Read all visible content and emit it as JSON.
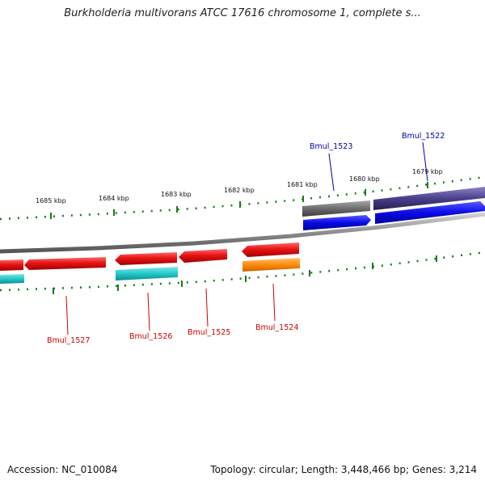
{
  "title": "Burkholderia multivorans ATCC 17616 chromosome 1, complete s...",
  "footer": {
    "accession": "Accession: NC_010084",
    "summary": "Topology: circular; Length: 3,448,466 bp; Genes: 3,214"
  },
  "colors": {
    "backbone": "#8c8c8c",
    "tick": "#1a7a1a",
    "reverse_label": "#cc0000",
    "forward_label": "#0000aa"
  },
  "ticks": [
    {
      "label": "1685 kbp"
    },
    {
      "label": "1684 kbp"
    },
    {
      "label": "1683 kbp"
    },
    {
      "label": "1682 kbp"
    },
    {
      "label": "1681 kbp"
    },
    {
      "label": "1680 kbp"
    },
    {
      "label": "1679 kbp"
    }
  ],
  "gene_labels": [
    {
      "name": "Bmul_1527",
      "strand": "reverse"
    },
    {
      "name": "Bmul_1526",
      "strand": "reverse"
    },
    {
      "name": "Bmul_1525",
      "strand": "reverse"
    },
    {
      "name": "Bmul_1524",
      "strand": "reverse"
    },
    {
      "name": "Bmul_1523",
      "strand": "forward"
    },
    {
      "name": "Bmul_1522",
      "strand": "forward"
    }
  ],
  "features": [
    {
      "name": "red-cds",
      "color": "#e81414"
    },
    {
      "name": "cyan-rna",
      "color": "#22c8c8"
    },
    {
      "name": "orange-gene",
      "color": "#ff8c0a"
    },
    {
      "name": "gray-feature",
      "color": "#6e6e6e"
    },
    {
      "name": "slate-feature",
      "color": "#4a3f8c"
    },
    {
      "name": "blue-cds",
      "color": "#0a0ae6"
    }
  ]
}
